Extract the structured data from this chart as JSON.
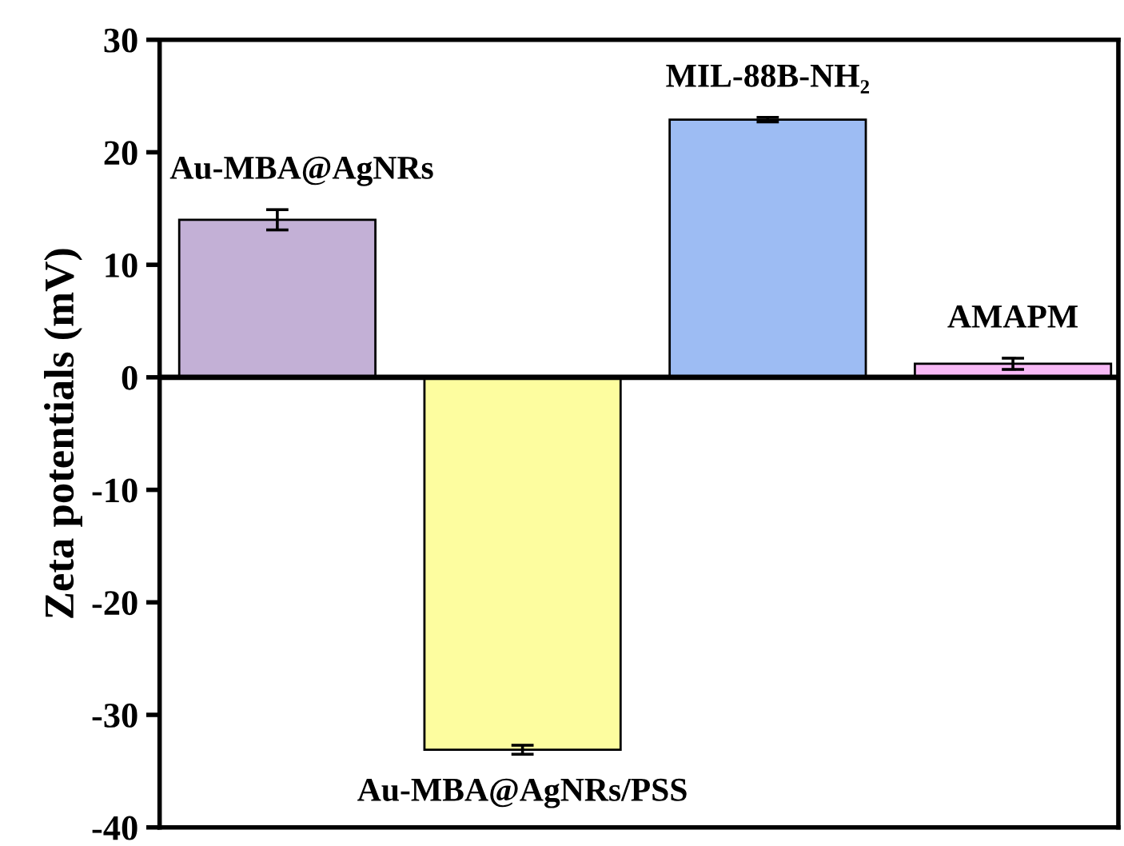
{
  "chart_data": {
    "type": "bar",
    "ylabel": "Zeta potentials (mV)",
    "categories": [
      "Au-MBA@AgNRs",
      "Au-MBA@AgNRs/PSS",
      "MIL-88B-NH₂",
      "AMAPM"
    ],
    "values": [
      14.0,
      -33.1,
      22.9,
      1.2
    ],
    "errors": [
      0.9,
      0.4,
      0.2,
      0.5
    ],
    "colors": [
      "#c3b0d6",
      "#fdfd9f",
      "#9dbcf3",
      "#f8b9f6"
    ],
    "ylim": [
      -40,
      30
    ],
    "yticks": [
      -40,
      -30,
      -20,
      -10,
      0,
      10,
      20,
      30
    ]
  }
}
